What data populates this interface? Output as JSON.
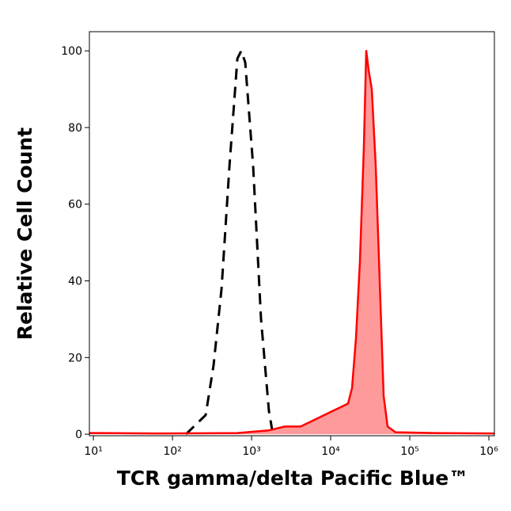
{
  "chart_data": {
    "type": "histogram-overlay",
    "xlabel": "TCR gamma/delta Pacific Blue™",
    "ylabel": "Relative Cell Count",
    "xscale": "log",
    "xlim": [
      8.9,
      1175000
    ],
    "ylim": [
      -0.4,
      105
    ],
    "xticks": [
      {
        "value": 10,
        "label": "10¹"
      },
      {
        "value": 100,
        "label": "10²"
      },
      {
        "value": 1000,
        "label": "10³"
      },
      {
        "value": 10000,
        "label": "10⁴"
      },
      {
        "value": 100000,
        "label": "10⁵"
      },
      {
        "value": 1000000,
        "label": "10⁶"
      }
    ],
    "yticks": [
      0,
      20,
      40,
      60,
      80,
      100
    ],
    "series": [
      {
        "color": "#000000",
        "style": "dashed",
        "x": [
          148,
          263,
          331,
          417,
          525,
          661,
          741,
          832,
          1047,
          1318,
          1660,
          1862
        ],
        "values": [
          0,
          5,
          18,
          38,
          70,
          98,
          100,
          97,
          70,
          30,
          6,
          0
        ]
      },
      {
        "color": "#ff0000",
        "fill": "#ff9a9a",
        "style": "solid",
        "x": [
          8.9,
          66,
          661,
          1660,
          2630,
          4169,
          6607,
          8318,
          10471,
          13183,
          16596,
          18621,
          20893,
          23442,
          26303,
          28184,
          30200,
          33113,
          37154,
          41687,
          46774,
          52481,
          66069,
          208930,
          1174898
        ],
        "values": [
          0.3,
          0.2,
          0.3,
          1,
          2,
          2,
          4,
          5,
          6,
          7,
          8,
          12,
          25,
          45,
          75,
          100,
          95,
          90,
          70,
          40,
          10,
          2,
          0.5,
          0.3,
          0.2
        ]
      }
    ]
  }
}
